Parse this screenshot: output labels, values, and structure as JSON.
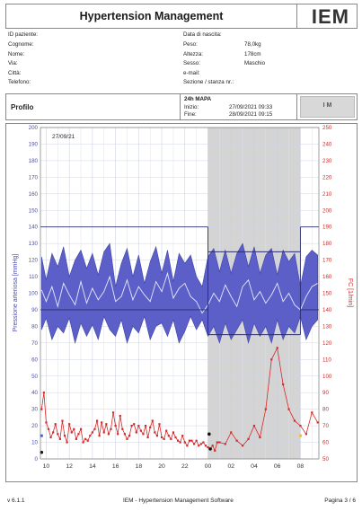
{
  "header": {
    "title": "Hypertension Management",
    "logo": "IEM"
  },
  "patient": {
    "id_label": "ID paziente:",
    "surname_label": "Cognome:",
    "name_label": "Nome:",
    "street_label": "Via:",
    "city_label": "Città:",
    "phone_label": "Telefono:",
    "dob_label": "Data di nascita:",
    "weight_label": "Peso:",
    "weight_value": "78,0kg",
    "height_label": "Altezza:",
    "height_value": "178cm",
    "sex_label": "Sesso:",
    "sex_value": "Maschio",
    "email_label": "e-mail:",
    "section_label": "Sezione / stanza nr.:"
  },
  "profile": {
    "label": "Profilo",
    "mapa_label": "24h MAPA",
    "start_label": "Inizio:",
    "start_value": "27/09/2021 09:33",
    "end_label": "Fine:",
    "end_value": "28/09/2021 09:15",
    "brand": "I M"
  },
  "chart_data": {
    "type": "line",
    "date_label": "27/09/21",
    "left_axis_label": "Pressione arteriosa [mmHg]",
    "right_axis_label": "FC [1/min]",
    "left_ylim": [
      0,
      200
    ],
    "right_ylim": [
      50,
      250
    ],
    "left_ticks": [
      0,
      10,
      20,
      30,
      40,
      50,
      60,
      70,
      80,
      90,
      100,
      110,
      120,
      130,
      140,
      150,
      160,
      170,
      180,
      190,
      200
    ],
    "right_ticks": [
      50,
      60,
      70,
      80,
      90,
      100,
      110,
      120,
      130,
      140,
      150,
      160,
      170,
      180,
      190,
      200,
      210,
      220,
      230,
      240,
      250
    ],
    "x_tick_labels": [
      "10",
      "12",
      "14",
      "16",
      "18",
      "20",
      "22",
      "00",
      "02",
      "04",
      "06",
      "08"
    ],
    "x_range_hours": [
      9.5,
      33.6
    ],
    "night_band_hours": [
      24.0,
      32.0
    ],
    "thresholds_systolic": [
      {
        "from": 9.5,
        "to": 24.0,
        "value": 140
      },
      {
        "from": 24.0,
        "to": 32.0,
        "value": 125
      },
      {
        "from": 32.0,
        "to": 33.6,
        "value": 140
      }
    ],
    "thresholds_diastolic": [
      {
        "from": 9.5,
        "to": 24.0,
        "value": 90
      },
      {
        "from": 24.0,
        "to": 32.0,
        "value": 75
      },
      {
        "from": 32.0,
        "to": 33.6,
        "value": 90
      }
    ],
    "bp_band": {
      "x": [
        9.6,
        10.0,
        10.5,
        11.0,
        11.5,
        12.0,
        12.5,
        13.0,
        13.5,
        14.0,
        14.5,
        15.0,
        15.5,
        16.0,
        16.5,
        17.0,
        17.5,
        18.0,
        18.5,
        19.0,
        19.5,
        20.0,
        20.5,
        21.0,
        21.5,
        22.0,
        22.5,
        23.0,
        23.5,
        24.0,
        24.5,
        25.0,
        25.5,
        26.0,
        26.5,
        27.0,
        27.5,
        28.0,
        28.5,
        29.0,
        29.5,
        30.0,
        30.5,
        31.0,
        31.5,
        32.0,
        32.5,
        33.0,
        33.5
      ],
      "systolic": [
        122,
        108,
        124,
        116,
        128,
        110,
        120,
        126,
        115,
        124,
        111,
        125,
        130,
        104,
        118,
        127,
        110,
        123,
        106,
        119,
        128,
        112,
        126,
        107,
        124,
        118,
        123,
        110,
        104,
        122,
        127,
        113,
        126,
        112,
        124,
        130,
        116,
        128,
        112,
        123,
        127,
        111,
        126,
        119,
        124,
        104,
        122,
        126,
        123
      ],
      "diastolic": [
        78,
        85,
        72,
        80,
        76,
        85,
        70,
        82,
        74,
        81,
        72,
        86,
        78,
        74,
        84,
        70,
        80,
        76,
        86,
        72,
        80,
        82,
        74,
        84,
        70,
        77,
        86,
        78,
        84,
        74,
        80,
        70,
        82,
        72,
        78,
        84,
        70,
        82,
        74,
        80,
        70,
        84,
        72,
        80,
        76,
        86,
        72,
        80,
        84
      ],
      "mean": [
        102,
        95,
        104,
        92,
        106,
        99,
        93,
        107,
        94,
        103,
        96,
        101,
        110,
        95,
        98,
        108,
        96,
        104,
        99,
        95,
        107,
        101,
        112,
        97,
        103,
        106,
        98,
        95,
        88,
        93,
        100,
        95,
        105,
        98,
        92,
        104,
        108,
        96,
        101,
        94,
        99,
        106,
        95,
        100,
        93,
        90,
        98,
        104,
        106
      ]
    },
    "heart_rate": {
      "x": [
        9.6,
        9.8,
        10.0,
        10.2,
        10.4,
        10.6,
        10.8,
        11.0,
        11.2,
        11.4,
        11.6,
        11.8,
        12.0,
        12.2,
        12.4,
        12.6,
        12.8,
        13.0,
        13.2,
        13.4,
        13.6,
        13.8,
        14.0,
        14.2,
        14.4,
        14.6,
        14.8,
        15.0,
        15.2,
        15.4,
        15.6,
        15.8,
        16.0,
        16.2,
        16.4,
        16.6,
        16.8,
        17.0,
        17.2,
        17.4,
        17.6,
        17.8,
        18.0,
        18.2,
        18.4,
        18.6,
        18.8,
        19.0,
        19.2,
        19.4,
        19.6,
        19.8,
        20.0,
        20.2,
        20.4,
        20.6,
        20.8,
        21.0,
        21.2,
        21.4,
        21.6,
        21.8,
        22.0,
        22.2,
        22.4,
        22.6,
        22.8,
        23.0,
        23.2,
        23.4,
        23.6,
        23.8,
        24.0,
        24.2,
        24.4,
        24.6,
        24.8,
        25.0,
        25.5,
        26.0,
        26.5,
        27.0,
        27.5,
        28.0,
        28.5,
        29.0,
        29.5,
        30.0,
        30.5,
        31.0,
        31.5,
        32.0,
        32.5,
        33.0,
        33.5
      ],
      "values": [
        80,
        90,
        72,
        68,
        63,
        66,
        71,
        65,
        62,
        73,
        64,
        60,
        71,
        66,
        68,
        62,
        65,
        68,
        60,
        62,
        61,
        64,
        66,
        68,
        73,
        64,
        72,
        66,
        71,
        65,
        68,
        78,
        70,
        65,
        76,
        68,
        65,
        62,
        64,
        70,
        71,
        66,
        70,
        67,
        65,
        70,
        63,
        69,
        73,
        66,
        64,
        71,
        63,
        62,
        67,
        64,
        62,
        66,
        63,
        61,
        60,
        64,
        60,
        58,
        61,
        61,
        59,
        61,
        58,
        59,
        60,
        58,
        57,
        56,
        58,
        55,
        60,
        60,
        59,
        66,
        61,
        58,
        62,
        70,
        63,
        80,
        110,
        117,
        95,
        80,
        73,
        70,
        65,
        78,
        72
      ]
    },
    "special_markers": [
      {
        "x": 9.6,
        "value": 54,
        "kind": "black"
      },
      {
        "x": 9.6,
        "value": 64,
        "kind": "blue-square"
      },
      {
        "x": 24.1,
        "value": 65,
        "kind": "black"
      },
      {
        "x": 24.2,
        "value": 56,
        "kind": "black"
      },
      {
        "x": 32.0,
        "value": 64,
        "kind": "yellow-square"
      }
    ]
  },
  "footer": {
    "version": "v 6.1.1",
    "center": "IEM - Hypertension Management Software",
    "page": "Pagina 3 / 6"
  }
}
